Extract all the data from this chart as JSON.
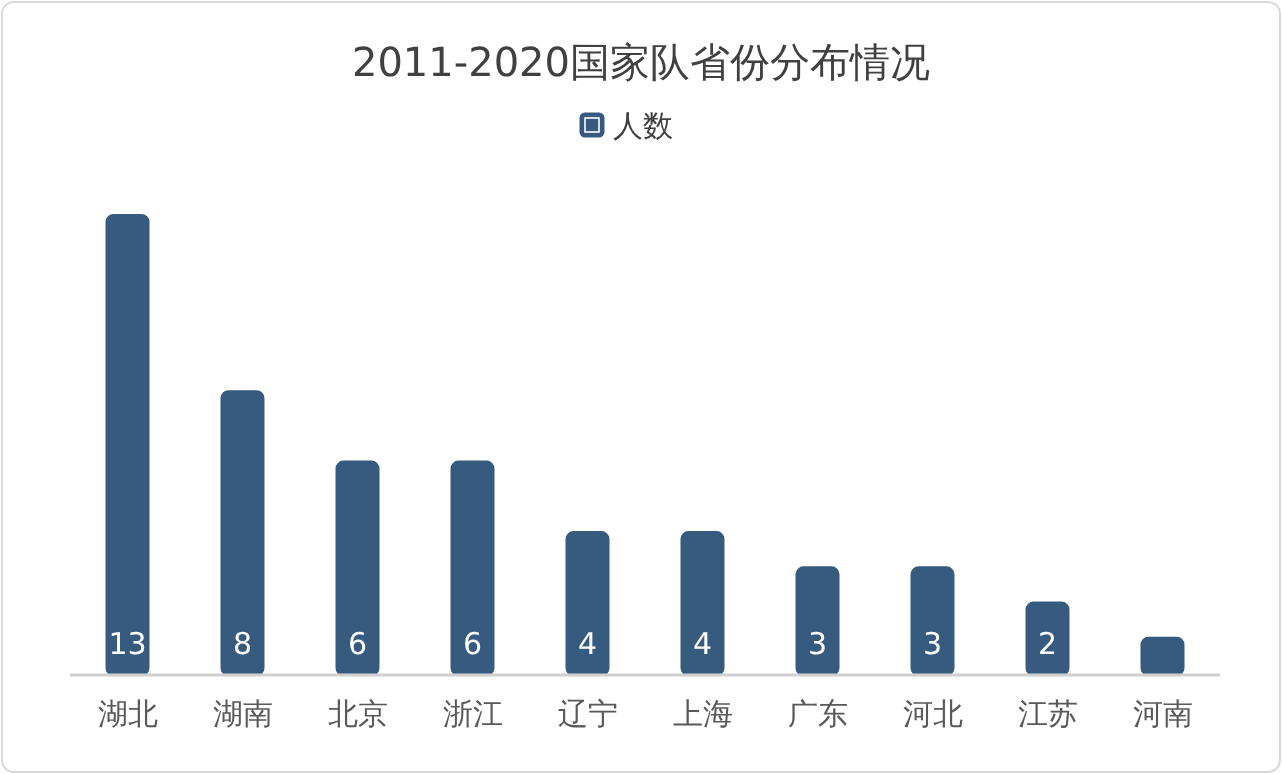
{
  "chart_data": {
    "type": "bar",
    "title": "2011-2020国家队省份分布情况",
    "categories": [
      "湖北",
      "湖南",
      "北京",
      "浙江",
      "辽宁",
      "上海",
      "广东",
      "河北",
      "江苏",
      "河南"
    ],
    "series": [
      {
        "name": "人数",
        "color": "#375a7f",
        "values": [
          13,
          8,
          6,
          6,
          4,
          4,
          3,
          3,
          2,
          1
        ],
        "value_labels": [
          "13",
          "8",
          "6",
          "6",
          "4",
          "4",
          "3",
          "3",
          "2",
          null
        ]
      }
    ],
    "legend": "top"
  }
}
